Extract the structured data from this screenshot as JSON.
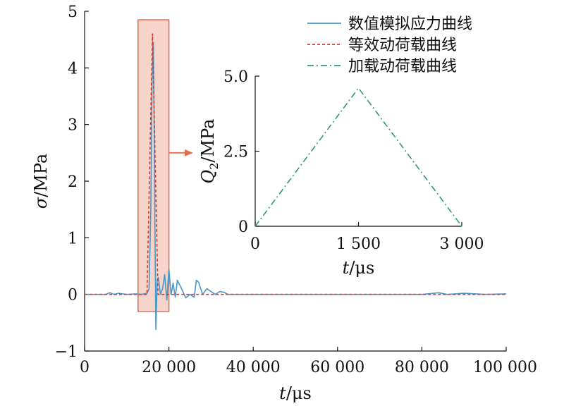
{
  "chart_data": [
    {
      "type": "line",
      "xlabel_var": "t",
      "xlabel_unit": "/μs",
      "ylabel_var": "σ",
      "ylabel_unit": "/MPa",
      "xlim": [
        0,
        100000
      ],
      "ylim": [
        -1,
        5
      ],
      "x_ticks": [
        0,
        20000,
        40000,
        60000,
        80000,
        100000
      ],
      "x_tick_labels": [
        "0",
        "20 000",
        "40 000",
        "60 000",
        "80 000",
        "100 000"
      ],
      "y_ticks": [
        -1,
        0,
        1,
        2,
        3,
        4,
        5
      ],
      "y_tick_labels": [
        "−1",
        "0",
        "1",
        "2",
        "3",
        "4",
        "5"
      ],
      "highlight": {
        "x_range": [
          12000,
          20000
        ],
        "y_range": [
          -0.3,
          4.85
        ],
        "color": "#e2704f"
      },
      "series": [
        {
          "name": "数值模拟应力曲线",
          "style": "solid",
          "color": "#4a97c9",
          "x": [
            0,
            5000,
            6000,
            7000,
            8000,
            10000,
            12000,
            13500,
            14800,
            15300,
            15700,
            16000,
            16300,
            16500,
            16700,
            16900,
            17200,
            17500,
            18000,
            18500,
            19000,
            19500,
            20000,
            20500,
            21000,
            21500,
            22000,
            23000,
            24000,
            25000,
            26000,
            26500,
            27000,
            28000,
            29000,
            30000,
            31000,
            32000,
            33000,
            34000,
            36000,
            40000,
            60000,
            80000,
            84000,
            86000,
            90000,
            95000,
            100000
          ],
          "y": [
            0.0,
            0.0,
            0.03,
            0.0,
            0.02,
            0.0,
            0.01,
            0.0,
            0.02,
            0.1,
            1.5,
            3.8,
            4.45,
            3.0,
            1.0,
            -0.62,
            0.25,
            0.3,
            0.0,
            0.1,
            0.35,
            -0.1,
            0.45,
            0.0,
            0.2,
            -0.05,
            0.25,
            0.1,
            -0.06,
            0.0,
            -0.05,
            0.25,
            0.22,
            0.0,
            0.1,
            0.05,
            0.0,
            0.05,
            0.04,
            0.0,
            0.0,
            0.0,
            0.0,
            0.0,
            0.03,
            0.0,
            0.02,
            0.0,
            0.01
          ]
        },
        {
          "name": "等效动荷载曲线",
          "style": "dashed",
          "color": "#d43c2e",
          "x": [
            0,
            14800,
            16100,
            17400,
            100000
          ],
          "y": [
            0,
            0,
            4.6,
            0,
            0
          ]
        }
      ]
    },
    {
      "type": "line",
      "xlabel_var": "t",
      "xlabel_unit": "/μs",
      "ylabel_var": "Q",
      "ylabel_sub": "2",
      "ylabel_unit": "/MPa",
      "xlim": [
        0,
        3000
      ],
      "ylim": [
        0,
        5.0
      ],
      "x_ticks": [
        0,
        1500,
        3000
      ],
      "x_tick_labels": [
        "0",
        "1 500",
        "3 000"
      ],
      "y_ticks": [
        0,
        2.5,
        5.0
      ],
      "y_tick_labels": [
        "0",
        "2.5",
        "5.0"
      ],
      "series": [
        {
          "name": "加载动荷载曲线",
          "style": "dashdot",
          "color": "#2e9a78",
          "x": [
            0,
            1500,
            3000
          ],
          "y": [
            0,
            4.6,
            0
          ]
        }
      ]
    }
  ]
}
